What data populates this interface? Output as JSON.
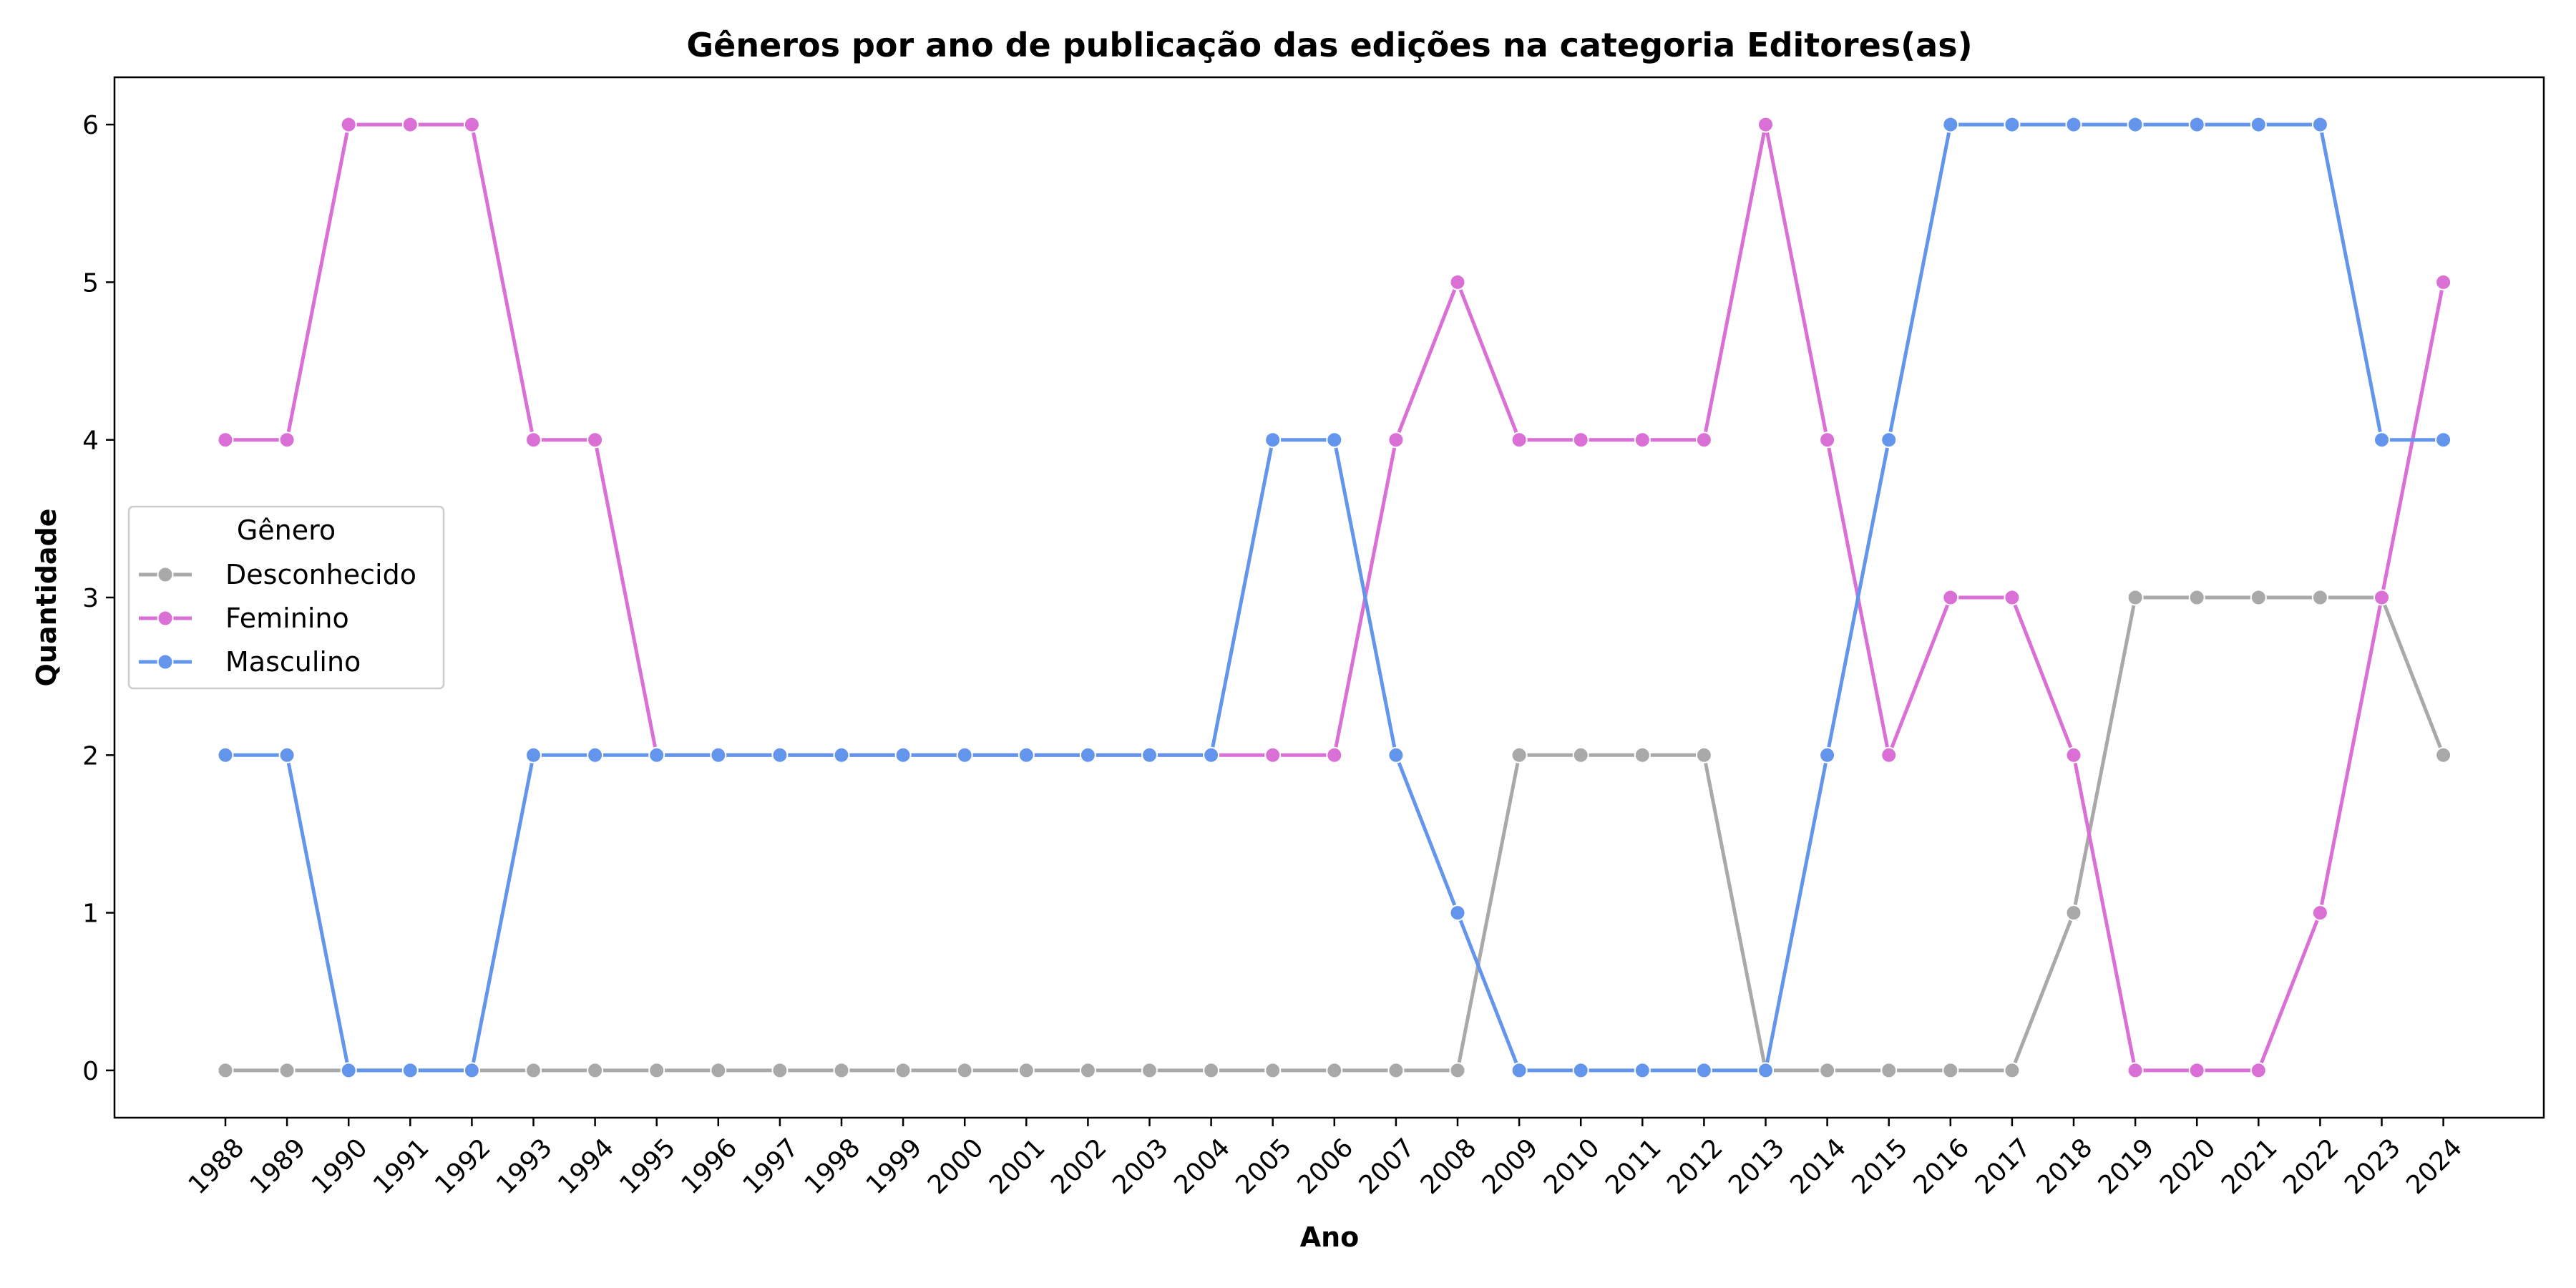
{
  "chart_data": {
    "type": "line",
    "title": "Gêneros por ano de publicação das edições na categoria Editores(as)",
    "xlabel": "Ano",
    "ylabel": "Quantidade",
    "x": [
      "1988",
      "1989",
      "1990",
      "1991",
      "1992",
      "1993",
      "1994",
      "1995",
      "1996",
      "1997",
      "1998",
      "1999",
      "2000",
      "2001",
      "2002",
      "2003",
      "2004",
      "2005",
      "2006",
      "2007",
      "2008",
      "2009",
      "2010",
      "2011",
      "2012",
      "2013",
      "2014",
      "2015",
      "2016",
      "2017",
      "2018",
      "2019",
      "2020",
      "2021",
      "2022",
      "2023",
      "2024"
    ],
    "yticks": [
      0,
      1,
      2,
      3,
      4,
      5,
      6
    ],
    "ylim": [
      -0.3,
      6.3
    ],
    "grid": false,
    "legend": {
      "title": "Gênero",
      "placement": "center-left"
    },
    "series": [
      {
        "name": "Desconhecido",
        "color": "#a9a9a9",
        "values": [
          0,
          0,
          0,
          0,
          0,
          0,
          0,
          0,
          0,
          0,
          0,
          0,
          0,
          0,
          0,
          0,
          0,
          0,
          0,
          0,
          0,
          2,
          2,
          2,
          2,
          0,
          0,
          0,
          0,
          0,
          1,
          3,
          3,
          3,
          3,
          3,
          2
        ]
      },
      {
        "name": "Feminino",
        "color": "#da70d6",
        "values": [
          4,
          4,
          6,
          6,
          6,
          4,
          4,
          2,
          2,
          2,
          2,
          2,
          2,
          2,
          2,
          2,
          2,
          2,
          2,
          4,
          5,
          4,
          4,
          4,
          4,
          6,
          4,
          2,
          3,
          3,
          2,
          0,
          0,
          0,
          1,
          3,
          5
        ]
      },
      {
        "name": "Masculino",
        "color": "#6495ed",
        "values": [
          2,
          2,
          0,
          0,
          0,
          2,
          2,
          2,
          2,
          2,
          2,
          2,
          2,
          2,
          2,
          2,
          2,
          4,
          4,
          2,
          1,
          0,
          0,
          0,
          0,
          0,
          2,
          4,
          6,
          6,
          6,
          6,
          6,
          6,
          6,
          4,
          4
        ]
      }
    ]
  }
}
